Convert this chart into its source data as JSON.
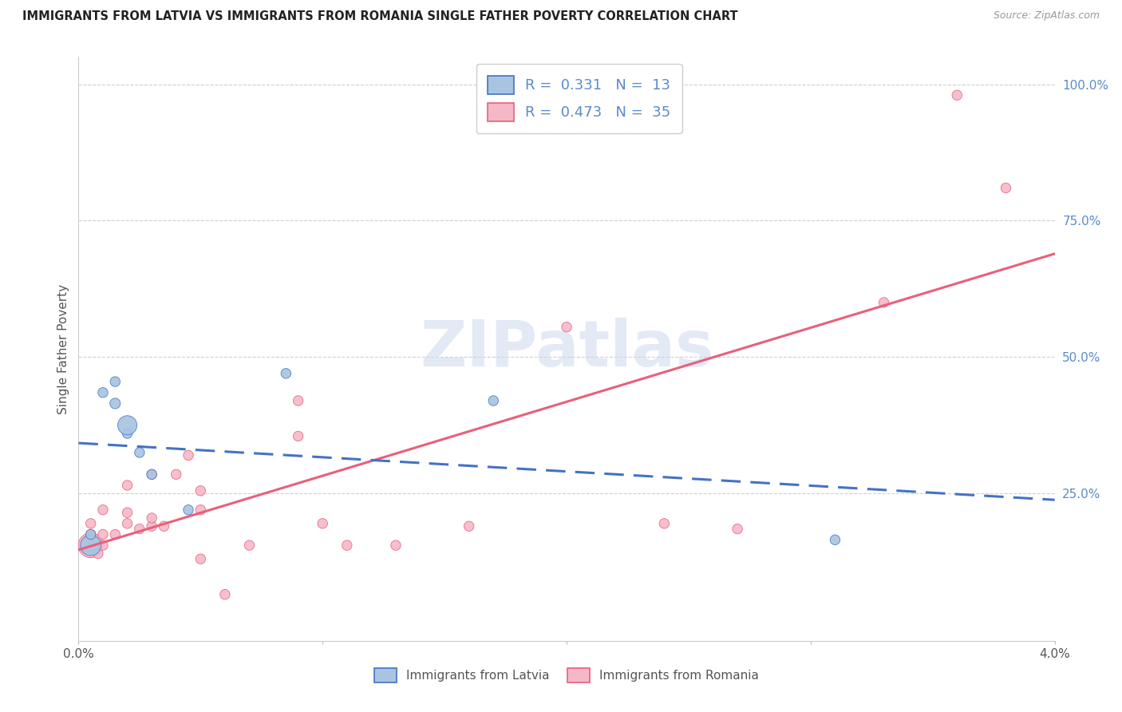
{
  "title": "IMMIGRANTS FROM LATVIA VS IMMIGRANTS FROM ROMANIA SINGLE FATHER POVERTY CORRELATION CHART",
  "source": "Source: ZipAtlas.com",
  "ylabel": "Single Father Poverty",
  "legend_latvia_R": "0.331",
  "legend_latvia_N": "13",
  "legend_romania_R": "0.473",
  "legend_romania_N": "35",
  "color_latvia": "#a8c4e0",
  "color_romania": "#f5b8c8",
  "color_trendline_latvia": "#4472C4",
  "color_trendline_romania": "#E8607A",
  "color_right_axis": "#5B8BC9",
  "xlim": [
    0.0,
    0.04
  ],
  "ylim": [
    -0.02,
    1.05
  ],
  "latvia_x": [
    0.0005,
    0.0005,
    0.001,
    0.0015,
    0.0015,
    0.002,
    0.002,
    0.0025,
    0.003,
    0.0045,
    0.0085,
    0.017,
    0.031
  ],
  "latvia_y": [
    0.155,
    0.175,
    0.435,
    0.415,
    0.455,
    0.36,
    0.375,
    0.325,
    0.285,
    0.22,
    0.47,
    0.42,
    0.165
  ],
  "latvia_size": [
    350,
    80,
    80,
    90,
    80,
    80,
    300,
    80,
    80,
    80,
    80,
    80,
    80
  ],
  "romania_x": [
    0.0005,
    0.0005,
    0.0005,
    0.0008,
    0.001,
    0.001,
    0.001,
    0.0015,
    0.002,
    0.002,
    0.002,
    0.0025,
    0.003,
    0.003,
    0.003,
    0.0035,
    0.004,
    0.0045,
    0.005,
    0.005,
    0.005,
    0.006,
    0.007,
    0.009,
    0.009,
    0.01,
    0.011,
    0.013,
    0.016,
    0.02,
    0.024,
    0.027,
    0.033,
    0.036,
    0.038
  ],
  "romania_y": [
    0.155,
    0.175,
    0.195,
    0.14,
    0.155,
    0.175,
    0.22,
    0.175,
    0.195,
    0.215,
    0.265,
    0.185,
    0.19,
    0.205,
    0.285,
    0.19,
    0.285,
    0.32,
    0.13,
    0.22,
    0.255,
    0.065,
    0.155,
    0.355,
    0.42,
    0.195,
    0.155,
    0.155,
    0.19,
    0.555,
    0.195,
    0.185,
    0.6,
    0.98,
    0.81
  ],
  "romania_size": [
    500,
    80,
    80,
    80,
    80,
    80,
    80,
    80,
    80,
    80,
    80,
    80,
    80,
    80,
    80,
    80,
    80,
    80,
    80,
    80,
    80,
    80,
    80,
    80,
    80,
    80,
    80,
    80,
    80,
    80,
    80,
    80,
    80,
    80,
    80
  ],
  "yticks": [
    0.0,
    0.25,
    0.5,
    0.75,
    1.0
  ],
  "ytick_labels": [
    "",
    "25.0%",
    "50.0%",
    "75.0%",
    "100.0%"
  ],
  "xticks": [
    0.0,
    0.01,
    0.02,
    0.03,
    0.04
  ],
  "xtick_labels": [
    "0.0%",
    "",
    "",
    "",
    "4.0%"
  ]
}
